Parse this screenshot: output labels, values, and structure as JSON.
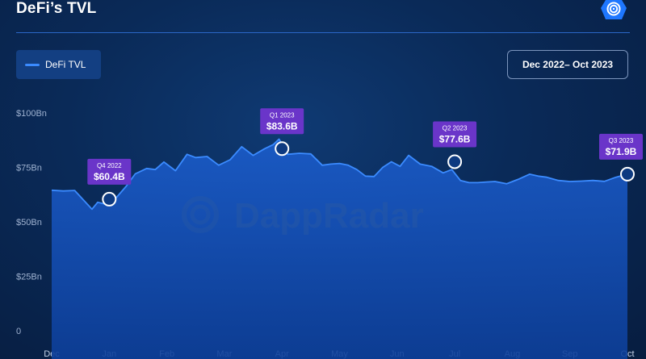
{
  "header": {
    "title": "DeFi’s TVL",
    "logo_icon": "dappradar-logo-icon"
  },
  "legend": {
    "label": "DeFi TVL",
    "color": "#3b8bff"
  },
  "date_range": {
    "label": "Dec 2022– Oct 2023"
  },
  "watermark": {
    "text": "DappRadar"
  },
  "chart_data": {
    "type": "area",
    "y_ticks": [
      "0",
      "$25Bn",
      "$50Bn",
      "$75Bn",
      "$100Bn"
    ],
    "ylim": [
      0,
      100
    ],
    "x_ticks": [
      "Dec",
      "Jan",
      "Feb",
      "Mar",
      "Apr",
      "May",
      "Jun",
      "Jul",
      "Aug",
      "Sep",
      "Oct"
    ],
    "grid": false,
    "series": [
      {
        "name": "DeFi TVL",
        "color": "#3b8bff",
        "x": [
          0.0,
          0.2,
          0.4,
          0.7,
          0.8,
          0.95,
          1.1,
          1.3,
          1.45,
          1.65,
          1.8,
          1.95,
          2.15,
          2.35,
          2.5,
          2.7,
          2.9,
          3.1,
          3.3,
          3.5,
          3.7,
          3.85,
          3.95,
          4.1,
          4.3,
          4.5,
          4.7,
          4.85,
          5.0,
          5.15,
          5.3,
          5.45,
          5.6,
          5.75,
          5.9,
          6.05,
          6.2,
          6.4,
          6.6,
          6.8,
          6.95,
          7.1,
          7.25,
          7.4,
          7.55,
          7.7,
          7.9,
          8.1,
          8.3,
          8.45,
          8.6,
          8.8,
          9.0,
          9.2,
          9.4,
          9.6,
          9.8,
          10.0
        ],
        "values": [
          64.5,
          64.2,
          64.4,
          55.8,
          59.0,
          58.0,
          60.4,
          66.5,
          72.0,
          74.5,
          74.0,
          77.5,
          73.5,
          81.0,
          79.5,
          80.0,
          76.0,
          78.5,
          84.5,
          80.5,
          83.6,
          85.5,
          88.0,
          81.0,
          81.5,
          81.2,
          76.0,
          76.5,
          76.8,
          76.0,
          74.0,
          71.0,
          70.8,
          75.0,
          77.6,
          75.5,
          80.5,
          76.5,
          75.5,
          72.5,
          74.0,
          69.0,
          68.0,
          68.0,
          68.3,
          68.5,
          67.5,
          69.5,
          71.9,
          71.0,
          70.5,
          69.0,
          68.5,
          68.7,
          69.0,
          68.6,
          70.5,
          71.9
        ]
      }
    ],
    "annotations": [
      {
        "x": 1.0,
        "value": 60.4,
        "quarter": "Q4 2022",
        "label": "$60.4B"
      },
      {
        "x": 4.0,
        "value": 83.6,
        "quarter": "Q1 2023",
        "label": "$83.6B"
      },
      {
        "x": 7.0,
        "value": 77.6,
        "quarter": "Q2 2023",
        "label": "$77.6B"
      },
      {
        "x": 10.0,
        "value": 71.9,
        "quarter": "Q3 2023",
        "label": "$71.9B"
      }
    ],
    "annotation_color": "#6a35c9"
  }
}
